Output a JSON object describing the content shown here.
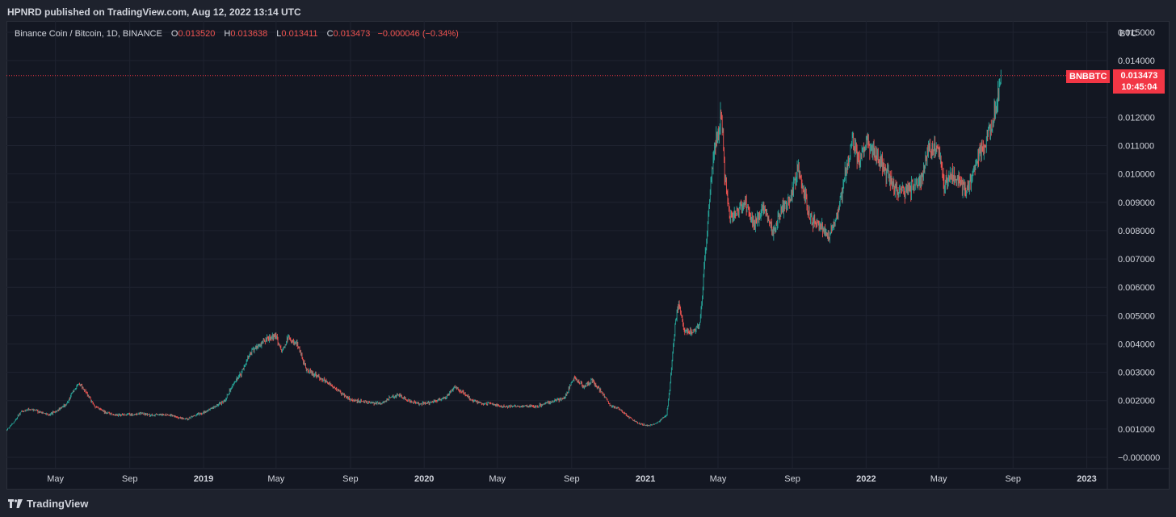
{
  "header": {
    "published": "HPNRD published on TradingView.com, Aug 12, 2022 13:14 UTC"
  },
  "legend": {
    "symbol": "Binance Coin / Bitcoin, 1D, BINANCE",
    "o_label": "O",
    "o_value": "0.013520",
    "h_label": "H",
    "h_value": "0.013638",
    "l_label": "L",
    "l_value": "0.013411",
    "c_label": "C",
    "c_value": "0.013473",
    "change": "−0.000046 (−0.34%)"
  },
  "price_badge": {
    "symbol": "BNBBTC",
    "price": "0.013473",
    "countdown": "10:45:04"
  },
  "footer": {
    "brand": "TradingView"
  },
  "colors": {
    "up": "#26a69a",
    "down": "#ef5350",
    "background": "#131722",
    "grid": "#1f2330",
    "badge": "#f23645"
  },
  "chart_data": {
    "type": "line",
    "title": "Binance Coin / Bitcoin, 1D, BINANCE",
    "ylabel": "BTC",
    "ylim": [
      -0.0004,
      0.0154
    ],
    "grid": true,
    "y_ticks": [
      "0.015000",
      "0.014000",
      "0.012000",
      "0.011000",
      "0.010000",
      "0.009000",
      "0.008000",
      "0.007000",
      "0.006000",
      "0.005000",
      "0.004000",
      "0.003000",
      "0.002000",
      "0.001000",
      "−0.000000"
    ],
    "x_ticks": [
      {
        "label": "May",
        "date": "2018-05-01",
        "bold": false
      },
      {
        "label": "Sep",
        "date": "2018-09-01",
        "bold": false
      },
      {
        "label": "2019",
        "date": "2019-01-01",
        "bold": true
      },
      {
        "label": "May",
        "date": "2019-05-01",
        "bold": false
      },
      {
        "label": "Sep",
        "date": "2019-09-01",
        "bold": false
      },
      {
        "label": "2020",
        "date": "2020-01-01",
        "bold": true
      },
      {
        "label": "May",
        "date": "2020-05-01",
        "bold": false
      },
      {
        "label": "Sep",
        "date": "2020-09-01",
        "bold": false
      },
      {
        "label": "2021",
        "date": "2021-01-01",
        "bold": true
      },
      {
        "label": "May",
        "date": "2021-05-01",
        "bold": false
      },
      {
        "label": "Sep",
        "date": "2021-09-01",
        "bold": false
      },
      {
        "label": "2022",
        "date": "2022-01-01",
        "bold": true
      },
      {
        "label": "May",
        "date": "2022-05-01",
        "bold": false
      },
      {
        "label": "Sep",
        "date": "2022-09-01",
        "bold": false
      },
      {
        "label": "2023",
        "date": "2023-01-01",
        "bold": true
      }
    ],
    "last_price": 0.013473,
    "series": [
      {
        "x": [
          "2018-02-09",
          "2018-02-20",
          "2018-03-05",
          "2018-03-20",
          "2018-04-05",
          "2018-04-20",
          "2018-05-01",
          "2018-05-20",
          "2018-06-01",
          "2018-06-10",
          "2018-06-20",
          "2018-07-05",
          "2018-07-20",
          "2018-08-05",
          "2018-08-20",
          "2018-09-05",
          "2018-09-20",
          "2018-10-05",
          "2018-10-20",
          "2018-11-05",
          "2018-11-20",
          "2018-12-05",
          "2018-12-20",
          "2019-01-05",
          "2019-01-20",
          "2019-02-05",
          "2019-02-20",
          "2019-03-05",
          "2019-03-20",
          "2019-04-05",
          "2019-04-20",
          "2019-05-01",
          "2019-05-10",
          "2019-05-20",
          "2019-06-05",
          "2019-06-20",
          "2019-07-05",
          "2019-07-20",
          "2019-08-05",
          "2019-08-20",
          "2019-09-05",
          "2019-09-20",
          "2019-10-05",
          "2019-10-20",
          "2019-11-05",
          "2019-11-20",
          "2019-12-05",
          "2019-12-20",
          "2020-01-05",
          "2020-01-20",
          "2020-02-05",
          "2020-02-20",
          "2020-03-05",
          "2020-03-20",
          "2020-04-05",
          "2020-04-20",
          "2020-05-05",
          "2020-05-20",
          "2020-06-05",
          "2020-06-20",
          "2020-07-05",
          "2020-07-20",
          "2020-08-05",
          "2020-08-20",
          "2020-09-05",
          "2020-09-20",
          "2020-10-05",
          "2020-10-20",
          "2020-11-05",
          "2020-11-20",
          "2020-12-05",
          "2020-12-20",
          "2021-01-05",
          "2021-01-20",
          "2021-02-05",
          "2021-02-10",
          "2021-02-19",
          "2021-02-25",
          "2021-03-05",
          "2021-03-20",
          "2021-04-01",
          "2021-04-10",
          "2021-04-20",
          "2021-05-01",
          "2021-05-07",
          "2021-05-12",
          "2021-05-20",
          "2021-06-01",
          "2021-06-15",
          "2021-07-01",
          "2021-07-15",
          "2021-08-01",
          "2021-08-15",
          "2021-09-01",
          "2021-09-10",
          "2021-09-20",
          "2021-10-01",
          "2021-10-15",
          "2021-11-01",
          "2021-11-15",
          "2021-12-01",
          "2021-12-10",
          "2021-12-20",
          "2022-01-01",
          "2022-01-15",
          "2022-02-01",
          "2022-02-15",
          "2022-03-01",
          "2022-03-15",
          "2022-04-01",
          "2022-04-15",
          "2022-05-01",
          "2022-05-10",
          "2022-05-20",
          "2022-06-01",
          "2022-06-15",
          "2022-07-01",
          "2022-07-15",
          "2022-07-25",
          "2022-08-05",
          "2022-08-12"
        ],
        "values": [
          0.00095,
          0.0012,
          0.0016,
          0.0017,
          0.0016,
          0.0015,
          0.0016,
          0.0019,
          0.0024,
          0.0026,
          0.0023,
          0.0018,
          0.0016,
          0.0015,
          0.0015,
          0.0015,
          0.00155,
          0.0015,
          0.0015,
          0.0015,
          0.0014,
          0.00135,
          0.0015,
          0.0016,
          0.0018,
          0.002,
          0.0026,
          0.003,
          0.0037,
          0.004,
          0.0042,
          0.0043,
          0.0037,
          0.0042,
          0.004,
          0.0031,
          0.0029,
          0.0027,
          0.0025,
          0.0022,
          0.002,
          0.002,
          0.0019,
          0.0019,
          0.0021,
          0.0022,
          0.002,
          0.0019,
          0.0019,
          0.002,
          0.0021,
          0.0025,
          0.0023,
          0.002,
          0.0019,
          0.0019,
          0.0018,
          0.0018,
          0.0018,
          0.0018,
          0.0018,
          0.0019,
          0.002,
          0.0021,
          0.0028,
          0.0025,
          0.0027,
          0.0023,
          0.0018,
          0.0017,
          0.0014,
          0.0012,
          0.0011,
          0.0012,
          0.0015,
          0.0024,
          0.0047,
          0.0055,
          0.0045,
          0.0044,
          0.0047,
          0.0072,
          0.01,
          0.0115,
          0.0122,
          0.01,
          0.0085,
          0.0086,
          0.009,
          0.0082,
          0.0088,
          0.008,
          0.0087,
          0.0094,
          0.0102,
          0.0093,
          0.0084,
          0.0082,
          0.0079,
          0.0086,
          0.0103,
          0.0112,
          0.0105,
          0.011,
          0.0108,
          0.0101,
          0.0096,
          0.0094,
          0.0095,
          0.0098,
          0.0108,
          0.0109,
          0.0097,
          0.01,
          0.0098,
          0.0093,
          0.0104,
          0.011,
          0.0115,
          0.0125,
          0.013473
        ]
      }
    ]
  }
}
